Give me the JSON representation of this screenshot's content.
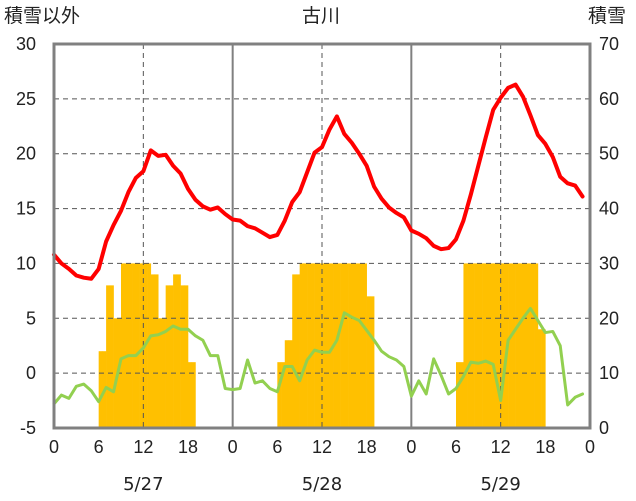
{
  "chart_data": {
    "type": "bar+line",
    "title": "古川",
    "ylabel_left": "積雪以外",
    "ylabel_right": "積雪",
    "ylim_left": [
      -5,
      30
    ],
    "ylim_right": [
      0,
      70
    ],
    "yticks_left": [
      "30",
      "25",
      "20",
      "15",
      "10",
      "5",
      "0",
      "-5"
    ],
    "yticks_right": [
      "70",
      "60",
      "50",
      "40",
      "30",
      "20",
      "10",
      "0"
    ],
    "xlim_hours": [
      0,
      72
    ],
    "xtick_labels": [
      "0",
      "6",
      "12",
      "18",
      "0",
      "6",
      "12",
      "18",
      "0",
      "6",
      "12",
      "18",
      "0"
    ],
    "day_labels": [
      "5/27",
      "5/28",
      "5/29"
    ],
    "grid": true,
    "colors": {
      "temperature": "#ff0000",
      "secondary": "#92d050",
      "bars": "#ffc000",
      "frame": "#808080",
      "grid": "#555555"
    },
    "series": [
      {
        "type": "bar",
        "axis": "right",
        "values": [
          [
            6,
            14
          ],
          [
            6.5,
            14
          ],
          [
            7,
            26
          ],
          [
            7.5,
            26
          ],
          [
            8,
            20
          ],
          [
            8.5,
            20
          ],
          [
            9,
            30
          ],
          [
            9.5,
            30
          ],
          [
            10,
            30
          ],
          [
            10.5,
            30
          ],
          [
            11,
            30
          ],
          [
            11.5,
            30
          ],
          [
            12,
            30
          ],
          [
            12.5,
            30
          ],
          [
            13,
            28
          ],
          [
            13.5,
            28
          ],
          [
            14,
            20
          ],
          [
            14.5,
            20
          ],
          [
            15,
            26
          ],
          [
            15.5,
            26
          ],
          [
            16,
            28
          ],
          [
            16.5,
            28
          ],
          [
            17,
            26
          ],
          [
            17.5,
            26
          ],
          [
            18,
            12
          ],
          [
            18.5,
            12
          ],
          [
            30,
            12
          ],
          [
            30.5,
            12
          ],
          [
            31,
            16
          ],
          [
            31.5,
            16
          ],
          [
            32,
            28
          ],
          [
            32.5,
            28
          ],
          [
            33,
            30
          ],
          [
            33.5,
            30
          ],
          [
            34,
            30
          ],
          [
            34.5,
            30
          ],
          [
            35,
            30
          ],
          [
            35.5,
            30
          ],
          [
            36,
            30
          ],
          [
            36.5,
            30
          ],
          [
            37,
            30
          ],
          [
            37.5,
            30
          ],
          [
            38,
            30
          ],
          [
            38.5,
            30
          ],
          [
            39,
            30
          ],
          [
            39.5,
            30
          ],
          [
            40,
            30
          ],
          [
            40.5,
            30
          ],
          [
            41,
            30
          ],
          [
            41.5,
            30
          ],
          [
            42,
            24
          ],
          [
            42.5,
            24
          ],
          [
            54,
            12
          ],
          [
            54.5,
            12
          ],
          [
            55,
            30
          ],
          [
            55.5,
            30
          ],
          [
            56,
            30
          ],
          [
            56.5,
            30
          ],
          [
            57,
            30
          ],
          [
            57.5,
            30
          ],
          [
            58,
            30
          ],
          [
            58.5,
            30
          ],
          [
            59,
            30
          ],
          [
            59.5,
            30
          ],
          [
            60,
            30
          ],
          [
            60.5,
            30
          ],
          [
            61,
            30
          ],
          [
            61.5,
            30
          ],
          [
            62,
            30
          ],
          [
            62.5,
            30
          ],
          [
            63,
            30
          ],
          [
            63.5,
            30
          ],
          [
            64,
            30
          ],
          [
            64.5,
            30
          ],
          [
            65,
            18
          ],
          [
            65.5,
            18
          ]
        ]
      },
      {
        "type": "line",
        "axis": "left",
        "color": "#ff0000",
        "values": [
          [
            0,
            10.8
          ],
          [
            1,
            10.0
          ],
          [
            2,
            9.5
          ],
          [
            3,
            8.9
          ],
          [
            4,
            8.7
          ],
          [
            5,
            8.6
          ],
          [
            6,
            9.5
          ],
          [
            7,
            12.0
          ],
          [
            8,
            13.5
          ],
          [
            9,
            14.8
          ],
          [
            10,
            16.5
          ],
          [
            11,
            17.8
          ],
          [
            12,
            18.4
          ],
          [
            13,
            20.3
          ],
          [
            14,
            19.8
          ],
          [
            15,
            19.9
          ],
          [
            16,
            18.9
          ],
          [
            17,
            18.2
          ],
          [
            18,
            16.8
          ],
          [
            19,
            15.8
          ],
          [
            20,
            15.2
          ],
          [
            21,
            14.9
          ],
          [
            22,
            15.1
          ],
          [
            23,
            14.5
          ],
          [
            24,
            14.0
          ],
          [
            25,
            13.9
          ],
          [
            26,
            13.4
          ],
          [
            27,
            13.2
          ],
          [
            28,
            12.8
          ],
          [
            29,
            12.4
          ],
          [
            30,
            12.6
          ],
          [
            31,
            13.9
          ],
          [
            32,
            15.6
          ],
          [
            33,
            16.5
          ],
          [
            34,
            18.3
          ],
          [
            35,
            20.1
          ],
          [
            36,
            20.6
          ],
          [
            37,
            22.2
          ],
          [
            38,
            23.4
          ],
          [
            39,
            21.8
          ],
          [
            40,
            21.0
          ],
          [
            41,
            20.0
          ],
          [
            42,
            18.9
          ],
          [
            43,
            17.0
          ],
          [
            44,
            15.9
          ],
          [
            45,
            15.1
          ],
          [
            46,
            14.6
          ],
          [
            47,
            14.2
          ],
          [
            48,
            13.0
          ],
          [
            49,
            12.7
          ],
          [
            50,
            12.3
          ],
          [
            51,
            11.6
          ],
          [
            52,
            11.3
          ],
          [
            53,
            11.4
          ],
          [
            54,
            12.2
          ],
          [
            55,
            13.9
          ],
          [
            56,
            16.3
          ],
          [
            57,
            18.9
          ],
          [
            58,
            21.5
          ],
          [
            59,
            24.0
          ],
          [
            60,
            25.1
          ],
          [
            61,
            26.0
          ],
          [
            62,
            26.3
          ],
          [
            63,
            25.2
          ],
          [
            64,
            23.5
          ],
          [
            65,
            21.7
          ],
          [
            66,
            20.9
          ],
          [
            67,
            19.7
          ],
          [
            68,
            17.9
          ],
          [
            69,
            17.3
          ],
          [
            70,
            17.1
          ],
          [
            71,
            16.1
          ]
        ]
      },
      {
        "type": "line",
        "axis": "left",
        "color": "#92d050",
        "values": [
          [
            0,
            -2.8
          ],
          [
            1,
            -2.0
          ],
          [
            2,
            -2.3
          ],
          [
            3,
            -1.2
          ],
          [
            4,
            -1.0
          ],
          [
            5,
            -1.6
          ],
          [
            6,
            -2.6
          ],
          [
            7,
            -1.3
          ],
          [
            8,
            -1.7
          ],
          [
            9,
            1.3
          ],
          [
            10,
            1.6
          ],
          [
            11,
            1.6
          ],
          [
            12,
            2.3
          ],
          [
            13,
            3.4
          ],
          [
            14,
            3.5
          ],
          [
            15,
            3.8
          ],
          [
            16,
            4.3
          ],
          [
            17,
            4.0
          ],
          [
            18,
            4.0
          ],
          [
            19,
            3.4
          ],
          [
            20,
            3.0
          ],
          [
            21,
            1.6
          ],
          [
            22,
            1.6
          ],
          [
            23,
            -1.4
          ],
          [
            24,
            -1.5
          ],
          [
            25,
            -1.4
          ],
          [
            26,
            1.2
          ],
          [
            27,
            -0.9
          ],
          [
            28,
            -0.7
          ],
          [
            29,
            -1.4
          ],
          [
            30,
            -1.7
          ],
          [
            31,
            0.6
          ],
          [
            32,
            0.6
          ],
          [
            33,
            -0.7
          ],
          [
            34,
            1.2
          ],
          [
            35,
            2.1
          ],
          [
            36,
            1.9
          ],
          [
            37,
            1.9
          ],
          [
            38,
            3.0
          ],
          [
            39,
            5.5
          ],
          [
            40,
            5.1
          ],
          [
            41,
            4.8
          ],
          [
            42,
            3.9
          ],
          [
            43,
            3.0
          ],
          [
            44,
            2.0
          ],
          [
            45,
            1.5
          ],
          [
            46,
            1.2
          ],
          [
            47,
            0.6
          ],
          [
            48,
            -2.1
          ],
          [
            49,
            -0.7
          ],
          [
            50,
            -1.9
          ],
          [
            51,
            1.3
          ],
          [
            52,
            -0.2
          ],
          [
            53,
            -1.9
          ],
          [
            54,
            -1.4
          ],
          [
            55,
            -0.3
          ],
          [
            56,
            1.0
          ],
          [
            57,
            0.9
          ],
          [
            58,
            1.1
          ],
          [
            59,
            0.8
          ],
          [
            60,
            -2.5
          ],
          [
            61,
            3.0
          ],
          [
            62,
            4.0
          ],
          [
            63,
            5.0
          ],
          [
            64,
            5.9
          ],
          [
            65,
            4.8
          ],
          [
            66,
            3.7
          ],
          [
            67,
            3.8
          ],
          [
            68,
            2.5
          ],
          [
            69,
            -2.9
          ],
          [
            70,
            -2.2
          ],
          [
            71,
            -1.9
          ]
        ]
      }
    ]
  }
}
